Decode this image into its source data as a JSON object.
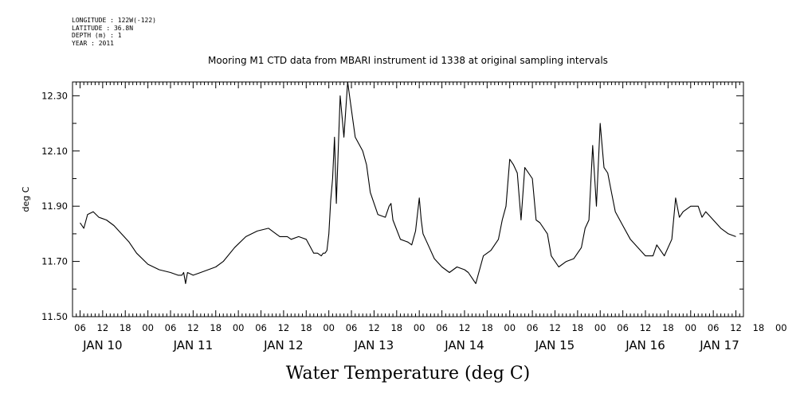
{
  "header_meta": {
    "longitude": "LONGITUDE : 122W(-122)",
    "latitude": "LATITUDE : 36.8N",
    "depth": "DEPTH (m) : 1",
    "year": "YEAR : 2011"
  },
  "chart_data": {
    "type": "line",
    "title": "Mooring M1 CTD data from MBARI instrument id 1338 at original sampling intervals",
    "xlabel": "Water Temperature (deg C)",
    "ylabel": "deg C",
    "ylim": [
      11.5,
      12.35
    ],
    "y_ticks": [
      "11.50",
      "11.70",
      "11.90",
      "12.10",
      "12.30"
    ],
    "xlim": [
      "2011-01-10T04:00",
      "2011-01-17T14:00"
    ],
    "x_hour_ticks": [
      "06",
      "12",
      "18",
      "00",
      "06",
      "12",
      "18",
      "00",
      "06",
      "12",
      "18",
      "00",
      "06",
      "12",
      "18",
      "00",
      "06",
      "12",
      "18",
      "00",
      "06",
      "12",
      "18",
      "00",
      "06",
      "12",
      "18",
      "00",
      "06",
      "12",
      "18",
      "00"
    ],
    "x_day_labels": [
      "JAN 10",
      "JAN 11",
      "JAN 12",
      "JAN 13",
      "JAN 14",
      "JAN 15",
      "JAN 16",
      "JAN 17"
    ],
    "grid": false,
    "series": [
      {
        "color": "#000000",
        "x": [
          "2011-01-10T06:00",
          "2011-01-10T07:00",
          "2011-01-10T08:00",
          "2011-01-10T09:30",
          "2011-01-10T11:00",
          "2011-01-10T13:00",
          "2011-01-10T15:00",
          "2011-01-10T17:00",
          "2011-01-10T19:00",
          "2011-01-10T21:00",
          "2011-01-11T00:00",
          "2011-01-11T03:00",
          "2011-01-11T06:00",
          "2011-01-11T08:00",
          "2011-01-11T09:00",
          "2011-01-11T09:30",
          "2011-01-11T10:00",
          "2011-01-11T10:30",
          "2011-01-11T12:00",
          "2011-01-11T14:00",
          "2011-01-11T18:00",
          "2011-01-11T20:00",
          "2011-01-11T23:00",
          "2011-01-12T02:00",
          "2011-01-12T05:00",
          "2011-01-12T08:00",
          "2011-01-12T10:00",
          "2011-01-12T11:00",
          "2011-01-12T13:00",
          "2011-01-12T14:00",
          "2011-01-12T16:00",
          "2011-01-12T18:00",
          "2011-01-12T20:00",
          "2011-01-12T21:00",
          "2011-01-12T22:00",
          "2011-01-12T22:30",
          "2011-01-12T23:00",
          "2011-01-12T23:30",
          "2011-01-13T00:00",
          "2011-01-13T00:30",
          "2011-01-13T01:00",
          "2011-01-13T01:30",
          "2011-01-13T02:00",
          "2011-01-13T03:00",
          "2011-01-13T04:00",
          "2011-01-13T05:00",
          "2011-01-13T06:00",
          "2011-01-13T07:00",
          "2011-01-13T09:00",
          "2011-01-13T10:00",
          "2011-01-13T11:00",
          "2011-01-13T13:00",
          "2011-01-13T15:00",
          "2011-01-13T16:00",
          "2011-01-13T16:30",
          "2011-01-13T17:00",
          "2011-01-13T19:00",
          "2011-01-13T21:00",
          "2011-01-13T22:00",
          "2011-01-13T23:00",
          "2011-01-14T00:00",
          "2011-01-14T00:30",
          "2011-01-14T01:00",
          "2011-01-14T02:00",
          "2011-01-14T04:00",
          "2011-01-14T06:00",
          "2011-01-14T08:00",
          "2011-01-14T10:00",
          "2011-01-14T12:00",
          "2011-01-14T13:00",
          "2011-01-14T14:00",
          "2011-01-14T15:00",
          "2011-01-14T17:00",
          "2011-01-14T18:00",
          "2011-01-14T19:00",
          "2011-01-14T21:00",
          "2011-01-14T22:00",
          "2011-01-14T23:00",
          "2011-01-15T00:00",
          "2011-01-15T01:00",
          "2011-01-15T02:00",
          "2011-01-15T03:00",
          "2011-01-15T04:00",
          "2011-01-15T06:00",
          "2011-01-15T07:00",
          "2011-01-15T08:00",
          "2011-01-15T10:00",
          "2011-01-15T11:00",
          "2011-01-15T13:00",
          "2011-01-15T15:00",
          "2011-01-15T17:00",
          "2011-01-15T19:00",
          "2011-01-15T20:00",
          "2011-01-15T21:00",
          "2011-01-15T22:00",
          "2011-01-15T23:00",
          "2011-01-16T00:00",
          "2011-01-16T01:00",
          "2011-01-16T02:00",
          "2011-01-16T03:00",
          "2011-01-16T04:00",
          "2011-01-16T06:00",
          "2011-01-16T08:00",
          "2011-01-16T10:00",
          "2011-01-16T12:00",
          "2011-01-16T14:00",
          "2011-01-16T15:00",
          "2011-01-16T17:00",
          "2011-01-16T19:00",
          "2011-01-16T20:00",
          "2011-01-16T21:00",
          "2011-01-16T22:00",
          "2011-01-17T00:00",
          "2011-01-17T02:00",
          "2011-01-17T03:00",
          "2011-01-17T04:00",
          "2011-01-17T06:00",
          "2011-01-17T08:00",
          "2011-01-17T10:00",
          "2011-01-17T12:00"
        ],
        "y": [
          11.84,
          11.82,
          11.87,
          11.88,
          11.86,
          11.85,
          11.83,
          11.8,
          11.77,
          11.73,
          11.69,
          11.67,
          11.66,
          11.65,
          11.65,
          11.66,
          11.62,
          11.66,
          11.65,
          11.66,
          11.68,
          11.7,
          11.75,
          11.79,
          11.81,
          11.82,
          11.8,
          11.79,
          11.79,
          11.78,
          11.79,
          11.78,
          11.73,
          11.73,
          11.72,
          11.73,
          11.73,
          11.74,
          11.8,
          11.92,
          12.0,
          12.15,
          11.91,
          12.3,
          12.15,
          12.35,
          12.25,
          12.15,
          12.1,
          12.05,
          11.95,
          11.87,
          11.86,
          11.9,
          11.91,
          11.85,
          11.78,
          11.77,
          11.76,
          11.81,
          11.93,
          11.85,
          11.8,
          11.77,
          11.71,
          11.68,
          11.66,
          11.68,
          11.67,
          11.66,
          11.64,
          11.62,
          11.72,
          11.73,
          11.74,
          11.78,
          11.85,
          11.9,
          12.07,
          12.05,
          12.02,
          11.85,
          12.04,
          12.0,
          11.85,
          11.84,
          11.8,
          11.72,
          11.68,
          11.7,
          11.71,
          11.75,
          11.82,
          11.85,
          12.12,
          11.9,
          12.2,
          12.04,
          12.02,
          11.95,
          11.88,
          11.83,
          11.78,
          11.75,
          11.72,
          11.72,
          11.76,
          11.72,
          11.78,
          11.93,
          11.86,
          11.88,
          11.9,
          11.9,
          11.86,
          11.88,
          11.85,
          11.82,
          11.8,
          11.79
        ]
      }
    ]
  }
}
